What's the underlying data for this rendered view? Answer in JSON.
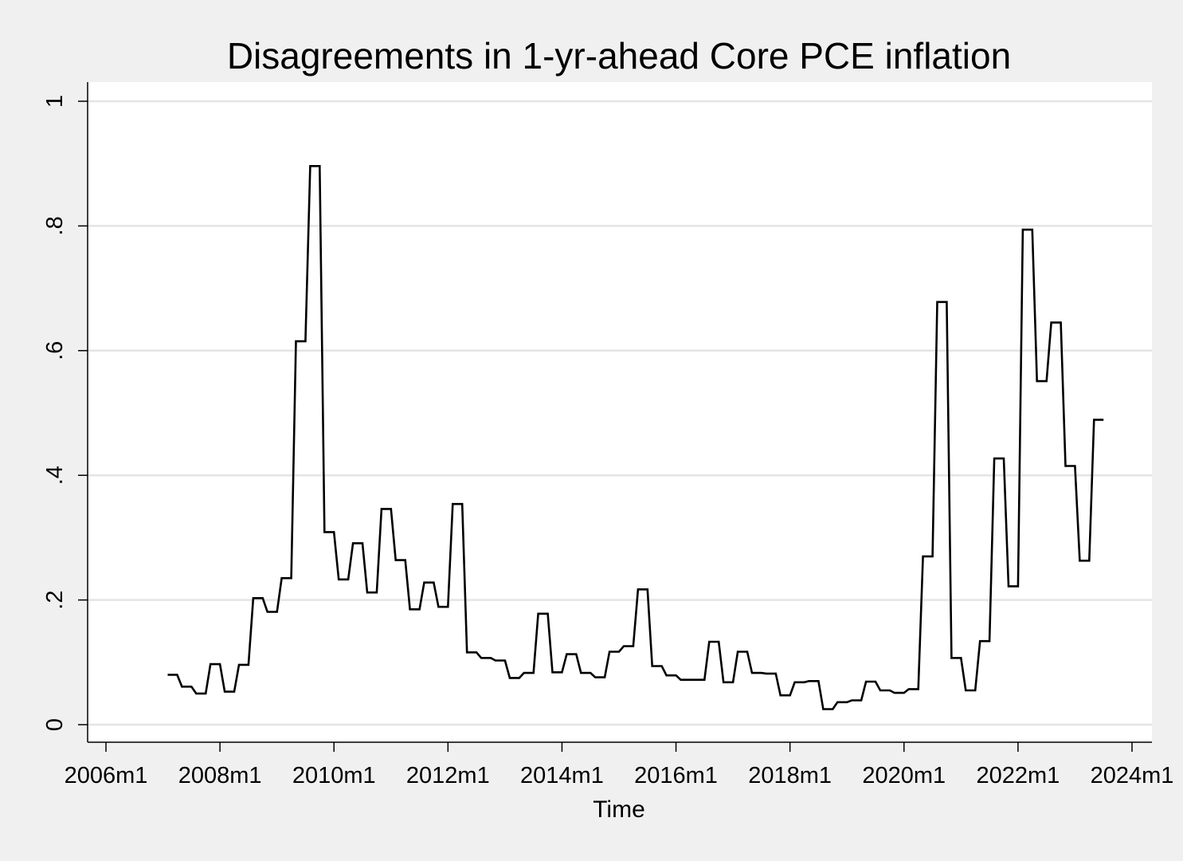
{
  "chart_data": {
    "type": "line",
    "line_style": "step",
    "title": "Disagreements in 1-yr-ahead Core PCE inflation",
    "xlabel": "Time",
    "ylabel": "",
    "xlim": [
      "2006m1",
      "2024m1"
    ],
    "ylim": [
      0,
      1
    ],
    "x_ticks": [
      "2006m1",
      "2008m1",
      "2010m1",
      "2012m1",
      "2014m1",
      "2016m1",
      "2018m1",
      "2020m1",
      "2022m1",
      "2024m1"
    ],
    "y_ticks": [
      0,
      0.2,
      0.4,
      0.6,
      0.8,
      1
    ],
    "y_tick_labels": [
      "0",
      ".2",
      ".4",
      ".6",
      ".8",
      "1"
    ],
    "grid": true,
    "legend": "none",
    "colors": {
      "page": "#f0f0f0",
      "plot_area": "#ffffff",
      "line": "#000000",
      "grid": "#e4e4e4"
    },
    "series": [
      {
        "color": "#000000",
        "x": [
          "2007m2",
          "2007m5",
          "2007m8",
          "2007m11",
          "2008m2",
          "2008m5",
          "2008m8",
          "2008m11",
          "2009m2",
          "2009m5",
          "2009m8",
          "2009m11",
          "2010m2",
          "2010m5",
          "2010m8",
          "2010m11",
          "2011m2",
          "2011m5",
          "2011m8",
          "2011m11",
          "2012m2",
          "2012m5",
          "2012m8",
          "2012m11",
          "2013m2",
          "2013m5",
          "2013m8",
          "2013m11",
          "2014m2",
          "2014m5",
          "2014m8",
          "2014m11",
          "2015m2",
          "2015m5",
          "2015m8",
          "2015m11",
          "2016m2",
          "2016m5",
          "2016m8",
          "2016m11",
          "2017m2",
          "2017m5",
          "2017m8",
          "2017m11",
          "2018m2",
          "2018m5",
          "2018m8",
          "2018m11",
          "2019m2",
          "2019m5",
          "2019m8",
          "2019m11",
          "2020m2",
          "2020m5",
          "2020m8",
          "2020m11",
          "2021m2",
          "2021m5",
          "2021m8",
          "2021m11",
          "2022m2",
          "2022m5",
          "2022m8",
          "2022m11",
          "2023m2",
          "2023m5"
        ],
        "values": [
          0.08,
          0.061,
          0.05,
          0.097,
          0.053,
          0.096,
          0.203,
          0.181,
          0.235,
          0.615,
          0.896,
          0.309,
          0.233,
          0.291,
          0.212,
          0.346,
          0.264,
          0.185,
          0.228,
          0.189,
          0.354,
          0.116,
          0.107,
          0.103,
          0.075,
          0.083,
          0.178,
          0.084,
          0.113,
          0.083,
          0.076,
          0.117,
          0.126,
          0.217,
          0.094,
          0.079,
          0.072,
          0.072,
          0.133,
          0.068,
          0.117,
          0.083,
          0.082,
          0.047,
          0.068,
          0.07,
          0.025,
          0.036,
          0.039,
          0.069,
          0.055,
          0.051,
          0.057,
          0.27,
          0.678,
          0.107,
          0.055,
          0.134,
          0.427,
          0.222,
          0.794,
          0.551,
          0.645,
          0.415,
          0.263,
          0.489
        ]
      }
    ]
  }
}
